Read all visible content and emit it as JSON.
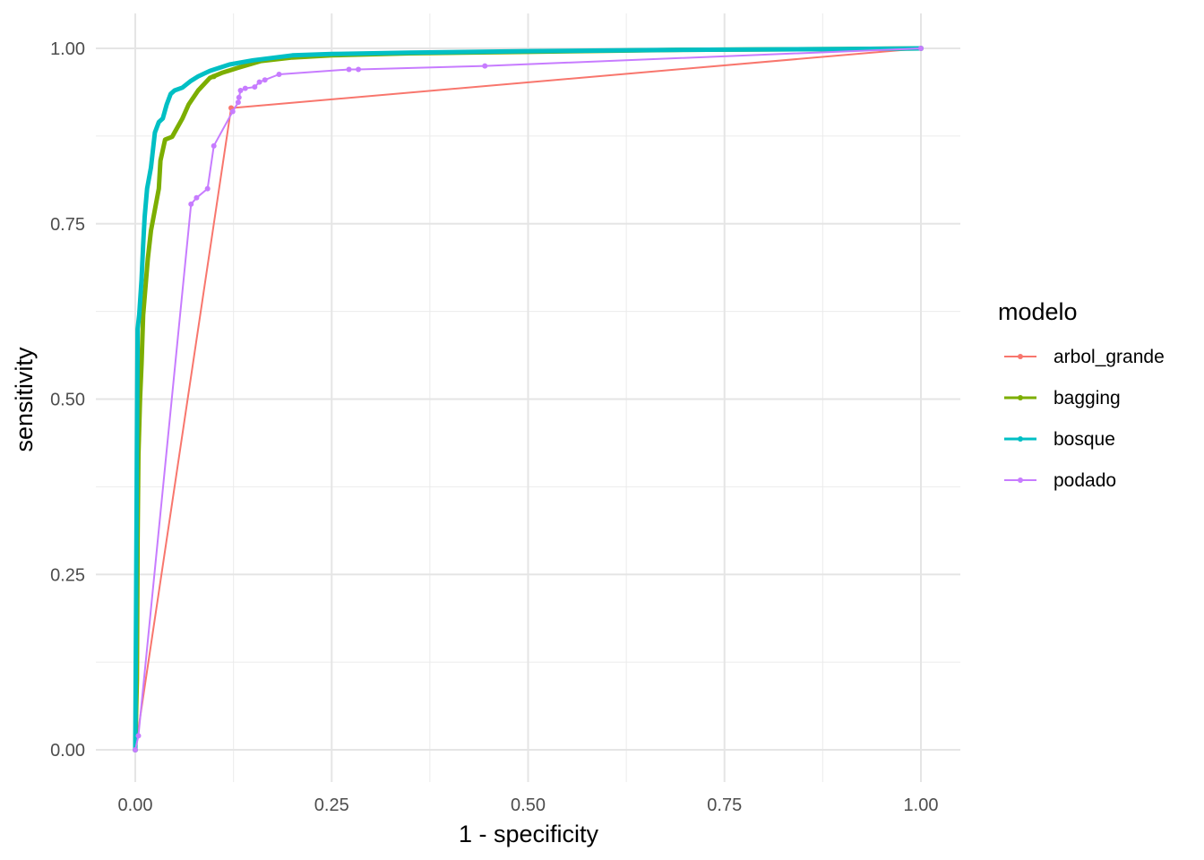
{
  "chart_data": {
    "type": "line",
    "title": "",
    "xlabel": "1 - specificity",
    "ylabel": "sensitivity",
    "xlim": [
      0,
      1
    ],
    "ylim": [
      0,
      1
    ],
    "x_ticks": [
      "0.00",
      "0.25",
      "0.50",
      "0.75",
      "1.00"
    ],
    "y_ticks": [
      "0.00",
      "0.25",
      "0.50",
      "0.75",
      "1.00"
    ],
    "grid": true,
    "legend": {
      "title": "modelo",
      "position": "right"
    },
    "series": [
      {
        "name": "arbol_grande",
        "color": "#F8766D",
        "width": 2,
        "points": [
          [
            0,
            0
          ],
          [
            0.122,
            0.915
          ],
          [
            1,
            1
          ]
        ],
        "markers": [
          [
            0,
            0
          ],
          [
            0.122,
            0.915
          ],
          [
            1,
            1
          ]
        ]
      },
      {
        "name": "bagging",
        "color": "#7CAE00",
        "width": 5,
        "points": [
          [
            0,
            0
          ],
          [
            0.002,
            0.1
          ],
          [
            0.003,
            0.3
          ],
          [
            0.004,
            0.42
          ],
          [
            0.006,
            0.5
          ],
          [
            0.008,
            0.55
          ],
          [
            0.01,
            0.62
          ],
          [
            0.013,
            0.66
          ],
          [
            0.016,
            0.7
          ],
          [
            0.02,
            0.74
          ],
          [
            0.025,
            0.77
          ],
          [
            0.03,
            0.8
          ],
          [
            0.032,
            0.84
          ],
          [
            0.038,
            0.87
          ],
          [
            0.047,
            0.874
          ],
          [
            0.05,
            0.88
          ],
          [
            0.06,
            0.9
          ],
          [
            0.068,
            0.92
          ],
          [
            0.08,
            0.94
          ],
          [
            0.095,
            0.958
          ],
          [
            0.11,
            0.965
          ],
          [
            0.13,
            0.972
          ],
          [
            0.16,
            0.982
          ],
          [
            0.2,
            0.987
          ],
          [
            0.25,
            0.99
          ],
          [
            0.35,
            0.993
          ],
          [
            0.5,
            0.995
          ],
          [
            0.7,
            0.998
          ],
          [
            0.9,
            0.999
          ],
          [
            1,
            1
          ]
        ],
        "markers": [
          [
            0,
            0
          ],
          [
            0.1,
            0.96
          ],
          [
            1,
            1
          ]
        ]
      },
      {
        "name": "bosque",
        "color": "#00BFC4",
        "width": 5,
        "points": [
          [
            0,
            0
          ],
          [
            0.001,
            0.2
          ],
          [
            0.002,
            0.42
          ],
          [
            0.003,
            0.6
          ],
          [
            0.005,
            0.62
          ],
          [
            0.008,
            0.67
          ],
          [
            0.01,
            0.72
          ],
          [
            0.012,
            0.76
          ],
          [
            0.015,
            0.8
          ],
          [
            0.02,
            0.83
          ],
          [
            0.025,
            0.88
          ],
          [
            0.03,
            0.895
          ],
          [
            0.035,
            0.9
          ],
          [
            0.04,
            0.92
          ],
          [
            0.045,
            0.935
          ],
          [
            0.05,
            0.94
          ],
          [
            0.06,
            0.944
          ],
          [
            0.07,
            0.953
          ],
          [
            0.08,
            0.96
          ],
          [
            0.095,
            0.968
          ],
          [
            0.12,
            0.977
          ],
          [
            0.15,
            0.983
          ],
          [
            0.2,
            0.99
          ],
          [
            0.25,
            0.992
          ],
          [
            0.35,
            0.994
          ],
          [
            0.5,
            0.996
          ],
          [
            0.7,
            0.998
          ],
          [
            0.9,
            0.999
          ],
          [
            1,
            1
          ]
        ],
        "markers": [
          [
            0,
            0
          ],
          [
            1,
            1
          ]
        ]
      },
      {
        "name": "podado",
        "color": "#C77CFF",
        "width": 2,
        "points": [
          [
            0,
            0
          ],
          [
            0.004,
            0.02
          ],
          [
            0.071,
            0.778
          ],
          [
            0.078,
            0.787
          ],
          [
            0.092,
            0.8
          ],
          [
            0.1,
            0.861
          ],
          [
            0.124,
            0.91
          ],
          [
            0.131,
            0.923
          ],
          [
            0.132,
            0.93
          ],
          [
            0.134,
            0.94
          ],
          [
            0.14,
            0.943
          ],
          [
            0.152,
            0.945
          ],
          [
            0.158,
            0.952
          ],
          [
            0.165,
            0.955
          ],
          [
            0.183,
            0.963
          ],
          [
            0.272,
            0.97
          ],
          [
            0.284,
            0.97
          ],
          [
            0.445,
            0.975
          ],
          [
            1,
            1
          ]
        ],
        "markers": [
          [
            0,
            0
          ],
          [
            0.004,
            0.02
          ],
          [
            0.071,
            0.778
          ],
          [
            0.078,
            0.787
          ],
          [
            0.092,
            0.8
          ],
          [
            0.1,
            0.861
          ],
          [
            0.124,
            0.91
          ],
          [
            0.131,
            0.923
          ],
          [
            0.132,
            0.93
          ],
          [
            0.134,
            0.94
          ],
          [
            0.14,
            0.943
          ],
          [
            0.152,
            0.945
          ],
          [
            0.158,
            0.952
          ],
          [
            0.165,
            0.955
          ],
          [
            0.183,
            0.963
          ],
          [
            0.272,
            0.97
          ],
          [
            0.284,
            0.97
          ],
          [
            0.445,
            0.975
          ],
          [
            1,
            1
          ]
        ]
      }
    ]
  }
}
